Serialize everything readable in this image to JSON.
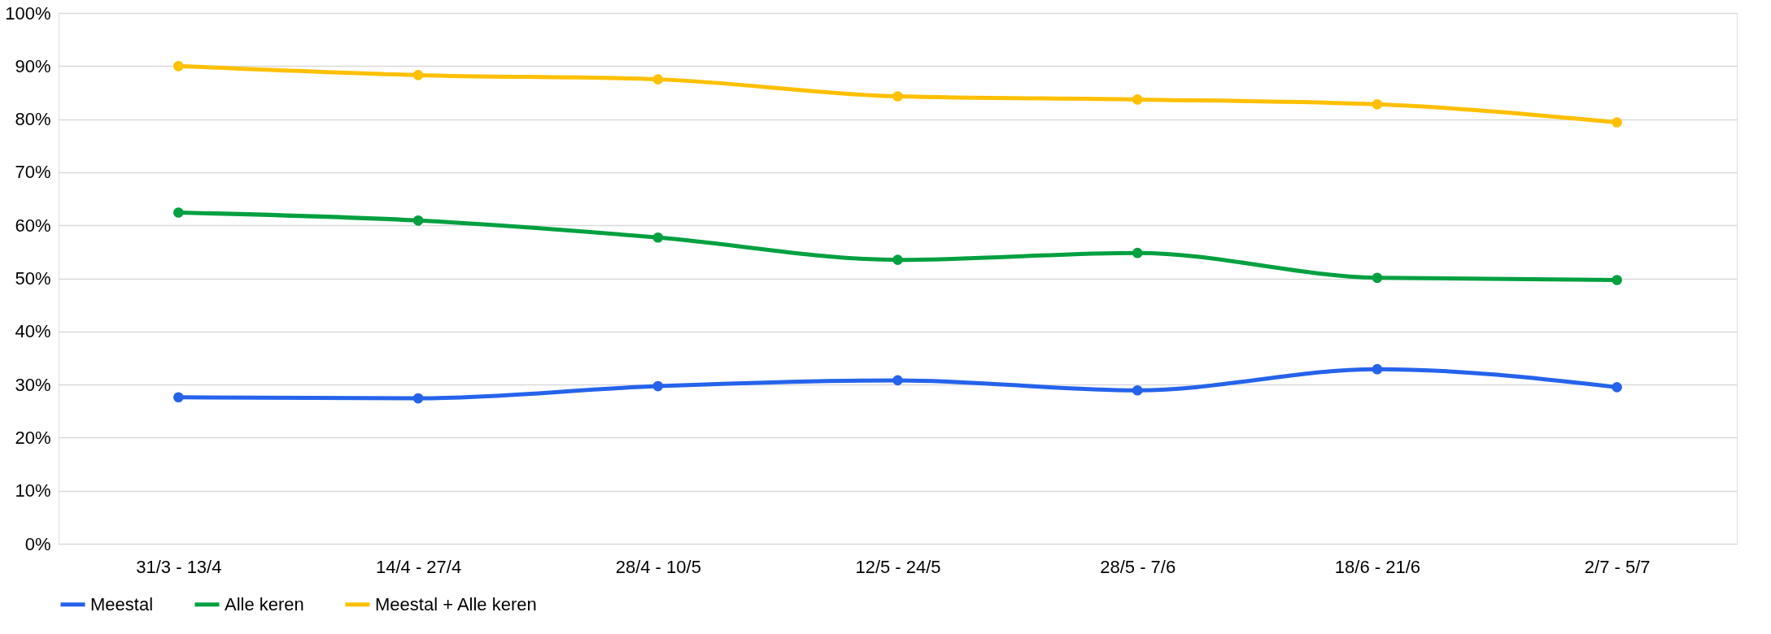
{
  "chart_data": {
    "type": "line",
    "categories": [
      "31/3 - 13/4",
      "14/4 - 27/4",
      "28/4 - 10/5",
      "12/5 - 24/5",
      "28/5 - 7/6",
      "18/6 - 21/6",
      "2/7 - 5/7"
    ],
    "series": [
      {
        "name": "Meestal",
        "color": "#2563eb",
        "values": [
          27.6,
          27.4,
          29.7,
          30.8,
          28.9,
          32.9,
          29.5
        ]
      },
      {
        "name": "Alle keren",
        "color": "#00a040",
        "values": [
          62.4,
          60.9,
          57.7,
          53.5,
          54.8,
          50.1,
          49.7
        ]
      },
      {
        "name": "Meestal + Alle keren",
        "color": "#ffc000",
        "values": [
          90.0,
          88.3,
          87.5,
          84.3,
          83.7,
          82.8,
          79.4
        ]
      }
    ],
    "ylim": [
      0,
      100
    ],
    "yticks": [
      {
        "value": 0,
        "label": "0%"
      },
      {
        "value": 10,
        "label": "10%"
      },
      {
        "value": 20,
        "label": "20%"
      },
      {
        "value": 30,
        "label": "30%"
      },
      {
        "value": 40,
        "label": "40%"
      },
      {
        "value": 50,
        "label": "50%"
      },
      {
        "value": 60,
        "label": "60%"
      },
      {
        "value": 70,
        "label": "70%"
      },
      {
        "value": 80,
        "label": "80%"
      },
      {
        "value": 90,
        "label": "90%"
      },
      {
        "value": 100,
        "label": "100%"
      }
    ],
    "grid": "y",
    "legend": "bottom",
    "marker": "circle",
    "line_style": "solid"
  }
}
